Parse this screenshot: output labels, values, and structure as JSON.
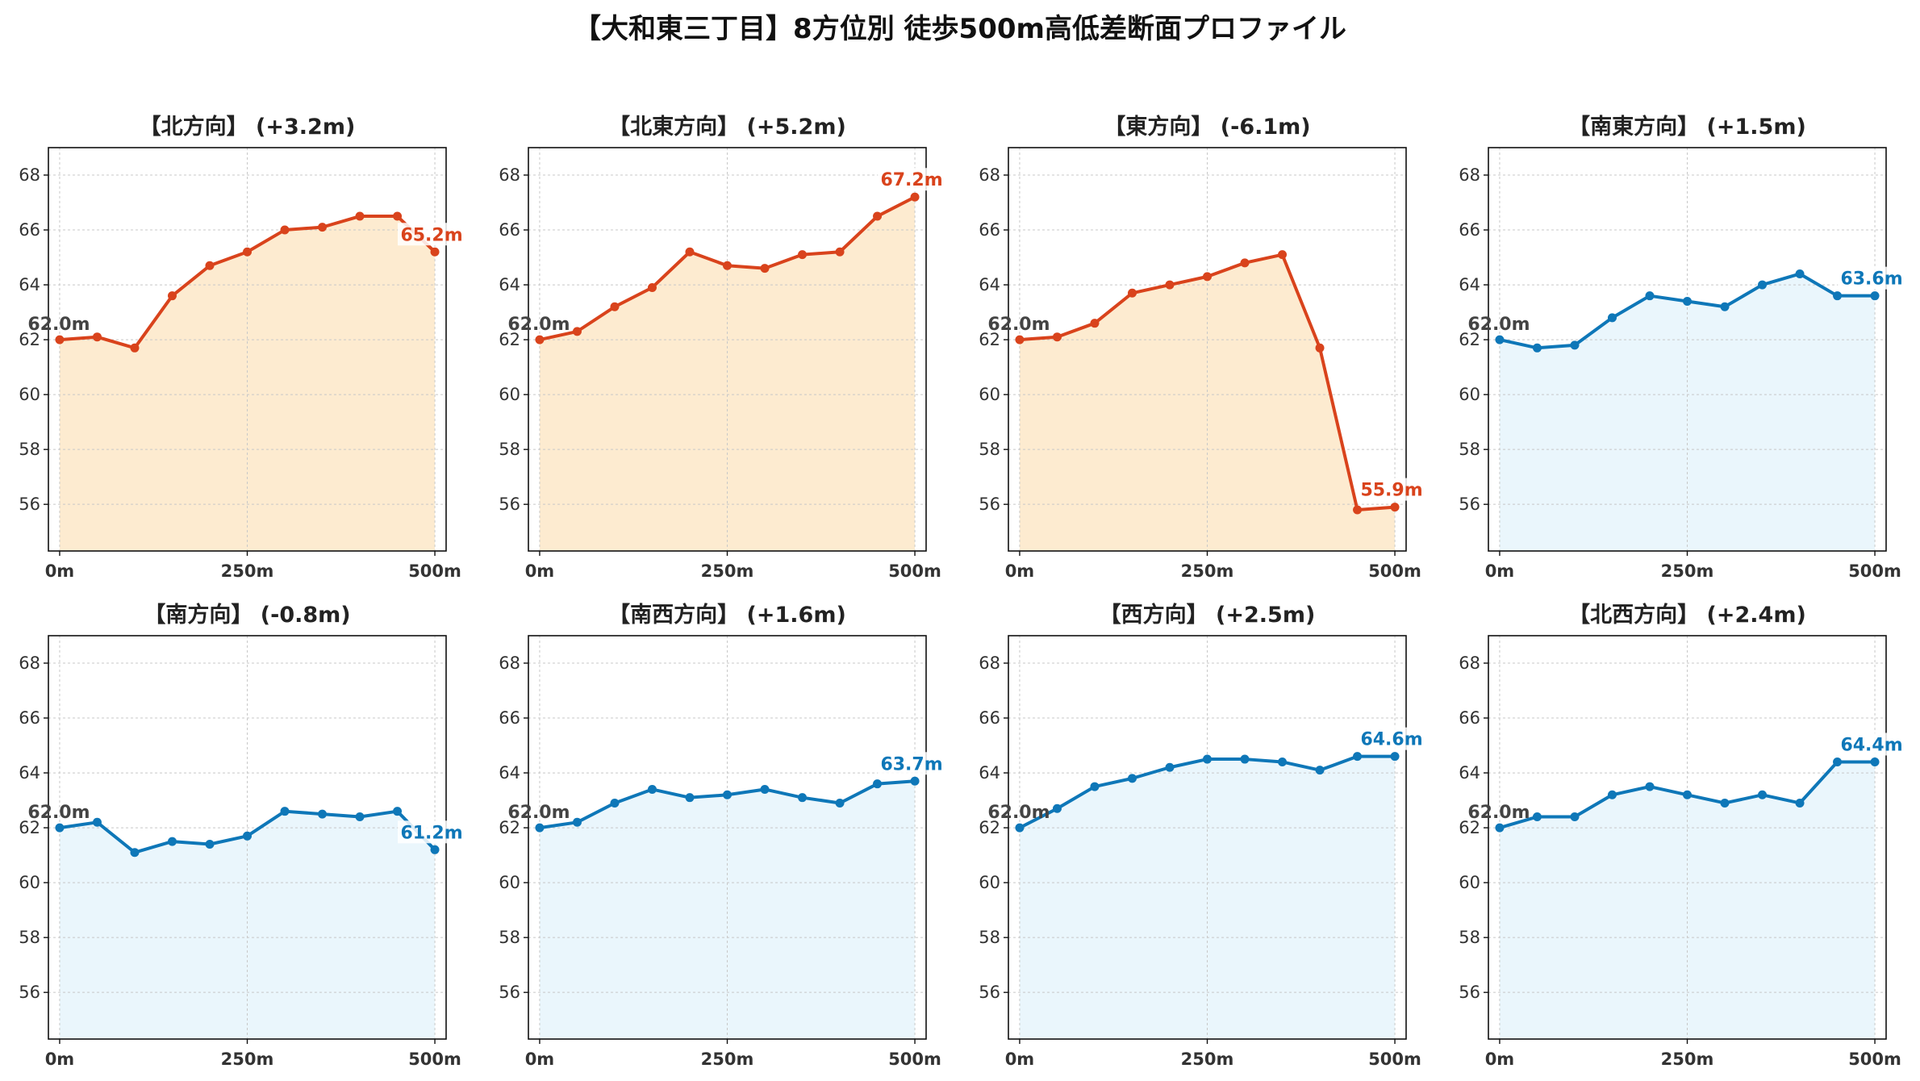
{
  "title": "【大和東三丁目】8方位別 徒歩500m高低差断面プロファイル",
  "colors": {
    "up": "#d9431c",
    "up_fill": "#fdebd0",
    "down": "#0e77b8",
    "down_fill": "#eaf6fc",
    "grid": "#c8c8c8",
    "start_label": "#444444"
  },
  "chart_data": [
    {
      "type": "line",
      "title": "【北方向】 (+3.2m)",
      "color": "up",
      "x": [
        0,
        50,
        100,
        150,
        200,
        250,
        300,
        350,
        400,
        450,
        500
      ],
      "values": [
        62.0,
        62.1,
        61.7,
        63.6,
        64.7,
        65.2,
        66.0,
        66.1,
        66.5,
        66.5,
        65.2
      ],
      "start_label": "62.0m",
      "end_label": "65.2m"
    },
    {
      "type": "line",
      "title": "【北東方向】 (+5.2m)",
      "color": "up",
      "x": [
        0,
        50,
        100,
        150,
        200,
        250,
        300,
        350,
        400,
        450,
        500
      ],
      "values": [
        62.0,
        62.3,
        63.2,
        63.9,
        65.2,
        64.7,
        64.6,
        65.1,
        65.2,
        66.5,
        67.2
      ],
      "start_label": "62.0m",
      "end_label": "67.2m"
    },
    {
      "type": "line",
      "title": "【東方向】 (-6.1m)",
      "color": "up",
      "x": [
        0,
        50,
        100,
        150,
        200,
        250,
        300,
        350,
        400,
        450,
        500
      ],
      "values": [
        62.0,
        62.1,
        62.6,
        63.7,
        64.0,
        64.3,
        64.8,
        65.1,
        61.7,
        55.8,
        55.9
      ],
      "start_label": "62.0m",
      "end_label": "55.9m"
    },
    {
      "type": "line",
      "title": "【南東方向】 (+1.5m)",
      "color": "down",
      "x": [
        0,
        50,
        100,
        150,
        200,
        250,
        300,
        350,
        400,
        450,
        500
      ],
      "values": [
        62.0,
        61.7,
        61.8,
        62.8,
        63.6,
        63.4,
        63.2,
        64.0,
        64.4,
        63.6,
        63.6
      ],
      "start_label": "62.0m",
      "end_label": "63.6m"
    },
    {
      "type": "line",
      "title": "【南方向】 (-0.8m)",
      "color": "down",
      "x": [
        0,
        50,
        100,
        150,
        200,
        250,
        300,
        350,
        400,
        450,
        500
      ],
      "values": [
        62.0,
        62.2,
        61.1,
        61.5,
        61.4,
        61.7,
        62.6,
        62.5,
        62.4,
        62.6,
        61.2
      ],
      "start_label": "62.0m",
      "end_label": "61.2m"
    },
    {
      "type": "line",
      "title": "【南西方向】 (+1.6m)",
      "color": "down",
      "x": [
        0,
        50,
        100,
        150,
        200,
        250,
        300,
        350,
        400,
        450,
        500
      ],
      "values": [
        62.0,
        62.2,
        62.9,
        63.4,
        63.1,
        63.2,
        63.4,
        63.1,
        62.9,
        63.6,
        63.7
      ],
      "start_label": "62.0m",
      "end_label": "63.7m"
    },
    {
      "type": "line",
      "title": "【西方向】 (+2.5m)",
      "color": "down",
      "x": [
        0,
        50,
        100,
        150,
        200,
        250,
        300,
        350,
        400,
        450,
        500
      ],
      "values": [
        62.0,
        62.7,
        63.5,
        63.8,
        64.2,
        64.5,
        64.5,
        64.4,
        64.1,
        64.6,
        64.6
      ],
      "start_label": "62.0m",
      "end_label": "64.6m"
    },
    {
      "type": "line",
      "title": "【北西方向】 (+2.4m)",
      "color": "down",
      "x": [
        0,
        50,
        100,
        150,
        200,
        250,
        300,
        350,
        400,
        450,
        500
      ],
      "values": [
        62.0,
        62.4,
        62.4,
        63.2,
        63.5,
        63.2,
        62.9,
        63.2,
        62.9,
        64.4,
        64.4
      ],
      "start_label": "62.0m",
      "end_label": "64.4m"
    }
  ],
  "axes": {
    "ylim": [
      54.3,
      69.0
    ],
    "yticks": [
      "56",
      "58",
      "60",
      "62",
      "64",
      "66",
      "68"
    ],
    "xlim": [
      -15,
      515
    ],
    "xticks": [
      0,
      250,
      500
    ],
    "xtick_labels": [
      "0m",
      "250m",
      "500m"
    ],
    "grid": true
  }
}
